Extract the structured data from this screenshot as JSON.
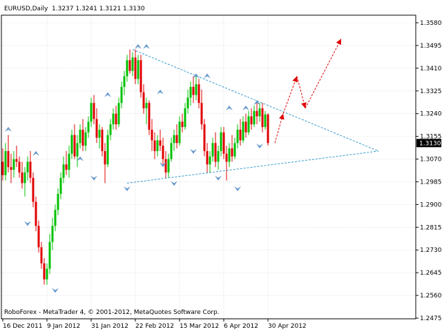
{
  "header": {
    "symbol_timeframe": "EURUSD,Daily",
    "ohlc": "1.3237 1.3241 1.3121 1.3130"
  },
  "footer": {
    "copyright": "RoboForex - MetaTrader 4, © 2001-2012, MetaQuotes Software Corp."
  },
  "colors": {
    "bull": "#00c000",
    "bear": "#e00000",
    "grid": "#c8c8c8",
    "triangle": "#3399cc",
    "fractal": "#6699cc",
    "forecast": "#e00000",
    "price_label_bg": "#000000"
  },
  "chart_data": {
    "type": "candlestick",
    "symbol": "EURUSD",
    "timeframe": "Daily",
    "current_price": "1.3130",
    "ylim": [
      1.2475,
      1.358
    ],
    "y_ticks": [
      "1.3580",
      "1.3495",
      "1.3410",
      "1.3325",
      "1.3240",
      "1.3155",
      "1.3070",
      "1.2985",
      "1.2900",
      "1.2815",
      "1.2730",
      "1.2645",
      "1.2560",
      "1.2475"
    ],
    "x_ticks": [
      "16 Dec 2011",
      "9 Jan 2012",
      "31 Jan 2012",
      "22 Feb 2012",
      "15 Mar 2012",
      "6 Apr 2012",
      "30 Apr 2012"
    ],
    "x_tick_index": [
      0,
      16,
      32,
      48,
      64,
      80,
      96
    ],
    "candles": [
      [
        1.306,
        1.311,
        1.299,
        1.301
      ],
      [
        1.301,
        1.313,
        1.299,
        1.31
      ],
      [
        1.31,
        1.316,
        1.302,
        1.304
      ],
      [
        1.304,
        1.309,
        1.298,
        1.303
      ],
      [
        1.303,
        1.31,
        1.3,
        1.307
      ],
      [
        1.307,
        1.312,
        1.304,
        1.306
      ],
      [
        1.306,
        1.308,
        1.3,
        1.302
      ],
      [
        1.302,
        1.306,
        1.296,
        1.298
      ],
      [
        1.298,
        1.304,
        1.293,
        1.302
      ],
      [
        1.302,
        1.308,
        1.299,
        1.306
      ],
      [
        1.306,
        1.31,
        1.298,
        1.3
      ],
      [
        1.3,
        1.302,
        1.289,
        1.291
      ],
      [
        1.291,
        1.293,
        1.28,
        1.282
      ],
      [
        1.282,
        1.284,
        1.272,
        1.274
      ],
      [
        1.274,
        1.276,
        1.266,
        1.268
      ],
      [
        1.268,
        1.27,
        1.26,
        1.262
      ],
      [
        1.262,
        1.268,
        1.26,
        1.266
      ],
      [
        1.266,
        1.279,
        1.264,
        1.276
      ],
      [
        1.276,
        1.285,
        1.273,
        1.282
      ],
      [
        1.282,
        1.29,
        1.28,
        1.288
      ],
      [
        1.288,
        1.296,
        1.286,
        1.294
      ],
      [
        1.294,
        1.302,
        1.292,
        1.3
      ],
      [
        1.3,
        1.308,
        1.298,
        1.305
      ],
      [
        1.305,
        1.31,
        1.301,
        1.303
      ],
      [
        1.303,
        1.312,
        1.3,
        1.309
      ],
      [
        1.309,
        1.318,
        1.307,
        1.316
      ],
      [
        1.316,
        1.32,
        1.307,
        1.308
      ],
      [
        1.308,
        1.316,
        1.304,
        1.313
      ],
      [
        1.313,
        1.32,
        1.311,
        1.318
      ],
      [
        1.318,
        1.322,
        1.31,
        1.312
      ],
      [
        1.312,
        1.319,
        1.31,
        1.317
      ],
      [
        1.317,
        1.323,
        1.315,
        1.321
      ],
      [
        1.321,
        1.33,
        1.319,
        1.328
      ],
      [
        1.328,
        1.331,
        1.32,
        1.322
      ],
      [
        1.322,
        1.326,
        1.313,
        1.315
      ],
      [
        1.315,
        1.32,
        1.311,
        1.318
      ],
      [
        1.318,
        1.319,
        1.308,
        1.31
      ],
      [
        1.31,
        1.313,
        1.298,
        1.305
      ],
      [
        1.305,
        1.318,
        1.304,
        1.316
      ],
      [
        1.316,
        1.322,
        1.314,
        1.32
      ],
      [
        1.32,
        1.326,
        1.318,
        1.324
      ],
      [
        1.324,
        1.327,
        1.318,
        1.32
      ],
      [
        1.32,
        1.33,
        1.319,
        1.328
      ],
      [
        1.328,
        1.336,
        1.326,
        1.334
      ],
      [
        1.334,
        1.34,
        1.331,
        1.338
      ],
      [
        1.338,
        1.346,
        1.336,
        1.344
      ],
      [
        1.344,
        1.348,
        1.339,
        1.34
      ],
      [
        1.34,
        1.347,
        1.338,
        1.345
      ],
      [
        1.345,
        1.348,
        1.335,
        1.337
      ],
      [
        1.337,
        1.346,
        1.335,
        1.344
      ],
      [
        1.344,
        1.346,
        1.33,
        1.332
      ],
      [
        1.332,
        1.335,
        1.324,
        1.326
      ],
      [
        1.326,
        1.33,
        1.32,
        1.328
      ],
      [
        1.328,
        1.329,
        1.316,
        1.318
      ],
      [
        1.318,
        1.322,
        1.31,
        1.314
      ],
      [
        1.314,
        1.317,
        1.307,
        1.31
      ],
      [
        1.31,
        1.316,
        1.308,
        1.314
      ],
      [
        1.314,
        1.318,
        1.31,
        1.312
      ],
      [
        1.312,
        1.315,
        1.305,
        1.307
      ],
      [
        1.307,
        1.31,
        1.3,
        1.302
      ],
      [
        1.302,
        1.309,
        1.3,
        1.307
      ],
      [
        1.307,
        1.315,
        1.306,
        1.313
      ],
      [
        1.313,
        1.318,
        1.31,
        1.316
      ],
      [
        1.316,
        1.32,
        1.311,
        1.313
      ],
      [
        1.313,
        1.323,
        1.312,
        1.321
      ],
      [
        1.321,
        1.324,
        1.317,
        1.319
      ],
      [
        1.319,
        1.328,
        1.318,
        1.326
      ],
      [
        1.326,
        1.333,
        1.324,
        1.33
      ],
      [
        1.33,
        1.336,
        1.327,
        1.334
      ],
      [
        1.334,
        1.338,
        1.328,
        1.331
      ],
      [
        1.331,
        1.338,
        1.329,
        1.335
      ],
      [
        1.335,
        1.337,
        1.326,
        1.328
      ],
      [
        1.328,
        1.333,
        1.318,
        1.32
      ],
      [
        1.32,
        1.322,
        1.308,
        1.31
      ],
      [
        1.31,
        1.313,
        1.302,
        1.305
      ],
      [
        1.305,
        1.31,
        1.302,
        1.308
      ],
      [
        1.308,
        1.315,
        1.306,
        1.313
      ],
      [
        1.313,
        1.317,
        1.304,
        1.306
      ],
      [
        1.306,
        1.312,
        1.303,
        1.31
      ],
      [
        1.31,
        1.319,
        1.308,
        1.317
      ],
      [
        1.317,
        1.319,
        1.307,
        1.309
      ],
      [
        1.309,
        1.312,
        1.299,
        1.306
      ],
      [
        1.306,
        1.313,
        1.304,
        1.311
      ],
      [
        1.311,
        1.316,
        1.306,
        1.308
      ],
      [
        1.308,
        1.315,
        1.307,
        1.313
      ],
      [
        1.313,
        1.32,
        1.311,
        1.318
      ],
      [
        1.318,
        1.322,
        1.312,
        1.314
      ],
      [
        1.314,
        1.323,
        1.313,
        1.321
      ],
      [
        1.321,
        1.324,
        1.315,
        1.317
      ],
      [
        1.317,
        1.325,
        1.316,
        1.323
      ],
      [
        1.323,
        1.326,
        1.318,
        1.32
      ],
      [
        1.32,
        1.327,
        1.319,
        1.325
      ],
      [
        1.325,
        1.329,
        1.32,
        1.323
      ],
      [
        1.323,
        1.328,
        1.321,
        1.326
      ],
      [
        1.326,
        1.328,
        1.317,
        1.319
      ],
      [
        1.319,
        1.325,
        1.318,
        1.3237
      ],
      [
        1.3237,
        1.3241,
        1.3121,
        1.313
      ]
    ],
    "triangle": {
      "upper": [
        [
          1.348,
          47
        ],
        [
          1.31,
          136
        ]
      ],
      "lower": [
        [
          1.298,
          45
        ],
        [
          1.31,
          136
        ]
      ]
    },
    "forecast_path": [
      [
        1.313,
        98
      ],
      [
        1.324,
        101
      ],
      [
        1.338,
        106
      ],
      [
        1.326,
        109
      ],
      [
        1.352,
        122
      ]
    ],
    "fractals_up": [
      [
        1.318,
        2
      ],
      [
        1.309,
        12
      ],
      [
        1.307,
        28
      ],
      [
        1.331,
        38
      ],
      [
        1.349,
        49
      ],
      [
        1.349,
        52
      ],
      [
        1.332,
        57
      ],
      [
        1.338,
        70
      ],
      [
        1.338,
        74
      ],
      [
        1.326,
        82
      ],
      [
        1.326,
        88
      ],
      [
        1.328,
        92
      ]
    ],
    "fractals_down": [
      [
        1.283,
        9
      ],
      [
        1.258,
        19
      ],
      [
        1.3,
        33
      ],
      [
        1.296,
        45
      ],
      [
        1.305,
        58
      ],
      [
        1.298,
        62
      ],
      [
        1.31,
        69
      ],
      [
        1.3,
        78
      ],
      [
        1.296,
        85
      ],
      [
        1.312,
        93
      ]
    ]
  }
}
